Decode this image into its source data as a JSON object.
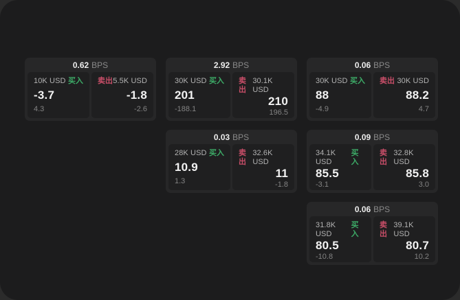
{
  "labels": {
    "bps": "BPS",
    "buy": "买入",
    "sell": "卖出"
  },
  "colors": {
    "buy": "#3dab67",
    "sell": "#c84e68",
    "window_bg": "#1c1c1d",
    "card_bg": "#272728",
    "panel_bg": "#1f1f20"
  },
  "cards": [
    {
      "row": 1,
      "col": 1,
      "bps": "0.62",
      "buy": {
        "amount": "10K USD",
        "price": "-3.7",
        "sub": "4.3"
      },
      "sell": {
        "amount": "5.5K USD",
        "price": "-1.8",
        "sub": "-2.6"
      }
    },
    {
      "row": 1,
      "col": 2,
      "bps": "2.92",
      "buy": {
        "amount": "30K USD",
        "price": "201",
        "sub": "-188.1"
      },
      "sell": {
        "amount": "30.1K USD",
        "price": "210",
        "sub": "196.5"
      }
    },
    {
      "row": 1,
      "col": 3,
      "bps": "0.06",
      "buy": {
        "amount": "30K USD",
        "price": "88",
        "sub": "-4.9"
      },
      "sell": {
        "amount": "30K USD",
        "price": "88.2",
        "sub": "4.7"
      }
    },
    {
      "row": 2,
      "col": 2,
      "bps": "0.03",
      "buy": {
        "amount": "28K USD",
        "price": "10.9",
        "sub": "1.3"
      },
      "sell": {
        "amount": "32.6K USD",
        "price": "11",
        "sub": "-1.8"
      }
    },
    {
      "row": 2,
      "col": 3,
      "bps": "0.09",
      "buy": {
        "amount": "34.1K USD",
        "price": "85.5",
        "sub": "-3.1"
      },
      "sell": {
        "amount": "32.8K USD",
        "price": "85.8",
        "sub": "3.0"
      }
    },
    {
      "row": 3,
      "col": 3,
      "bps": "0.06",
      "buy": {
        "amount": "31.8K USD",
        "price": "80.5",
        "sub": "-10.8"
      },
      "sell": {
        "amount": "39.1K USD",
        "price": "80.7",
        "sub": "10.2"
      }
    }
  ]
}
